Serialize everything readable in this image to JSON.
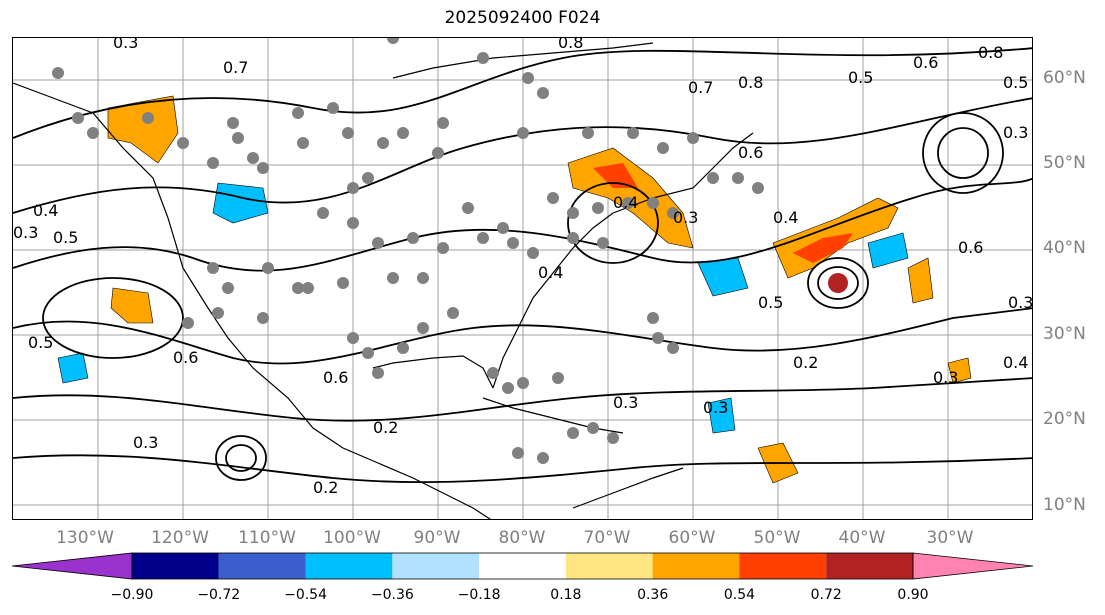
{
  "title": "2025092400 F024",
  "map": {
    "lon_labels": [
      "130°W",
      "120°W",
      "110°W",
      "100°W",
      "90°W",
      "80°W",
      "70°W",
      "60°W",
      "50°W",
      "40°W",
      "30°W"
    ],
    "lat_labels": [
      "60°N",
      "50°N",
      "40°N",
      "30°N",
      "20°N",
      "10°N"
    ],
    "contour_labels": [
      "0.3",
      "0.7",
      "0.8",
      "0.7",
      "0.8",
      "0.5",
      "0.6",
      "0.8",
      "0.5",
      "0.4",
      "0.5",
      "0.4",
      "0.6",
      "0.3",
      "0.4",
      "0.6",
      "0.5",
      "0.6",
      "0.3",
      "0.2",
      "0.3",
      "0.2",
      "0.3",
      "0.3",
      "0.2",
      "0.4",
      "0.3",
      "0.6",
      "0.5",
      "0.3",
      "0.4",
      "0.3"
    ],
    "colors": {
      "land_line": "#000000",
      "contour": "#000000",
      "station_dot": "#808080",
      "grid": "#a0a0a0"
    }
  },
  "colorbar": {
    "ticks": [
      "−0.90",
      "−0.72",
      "−0.54",
      "−0.36",
      "−0.18",
      "0.18",
      "0.36",
      "0.54",
      "0.72",
      "0.90"
    ],
    "colors": [
      "#9a32cd",
      "#00008b",
      "#3a5fcd",
      "#00bfff",
      "#b0e2ff",
      "#ffffff",
      "#ffe680",
      "#ffa500",
      "#ff4000",
      "#b22222",
      "#ff83b0"
    ]
  }
}
